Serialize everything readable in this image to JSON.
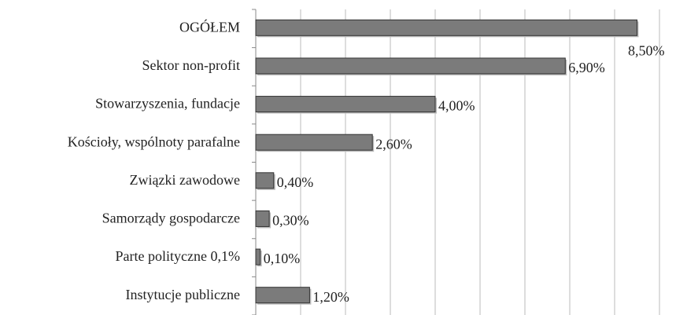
{
  "chart_data": {
    "type": "barh",
    "categories": [
      "OGÓŁEM",
      "Sektor non-profit",
      "Stowarzyszenia, fundacje",
      "Kościoły, wspólnoty parafalne",
      "Związki zawodowe",
      "Samorządy gospodarcze",
      "Parte polityczne 0,1%",
      "Instytucje publiczne"
    ],
    "values": [
      8.5,
      6.9,
      4.0,
      2.6,
      0.4,
      0.3,
      0.1,
      1.2
    ],
    "value_labels": [
      "8,50%",
      "6,90%",
      "4,00%",
      "2,60%",
      "0,40%",
      "0,30%",
      "0,10%",
      "1,20%"
    ],
    "color": "#7b7b7b",
    "xlim": [
      0,
      9
    ],
    "xticks": [
      0,
      1,
      2,
      3,
      4,
      5,
      6,
      7,
      8,
      9
    ],
    "grid": true
  }
}
